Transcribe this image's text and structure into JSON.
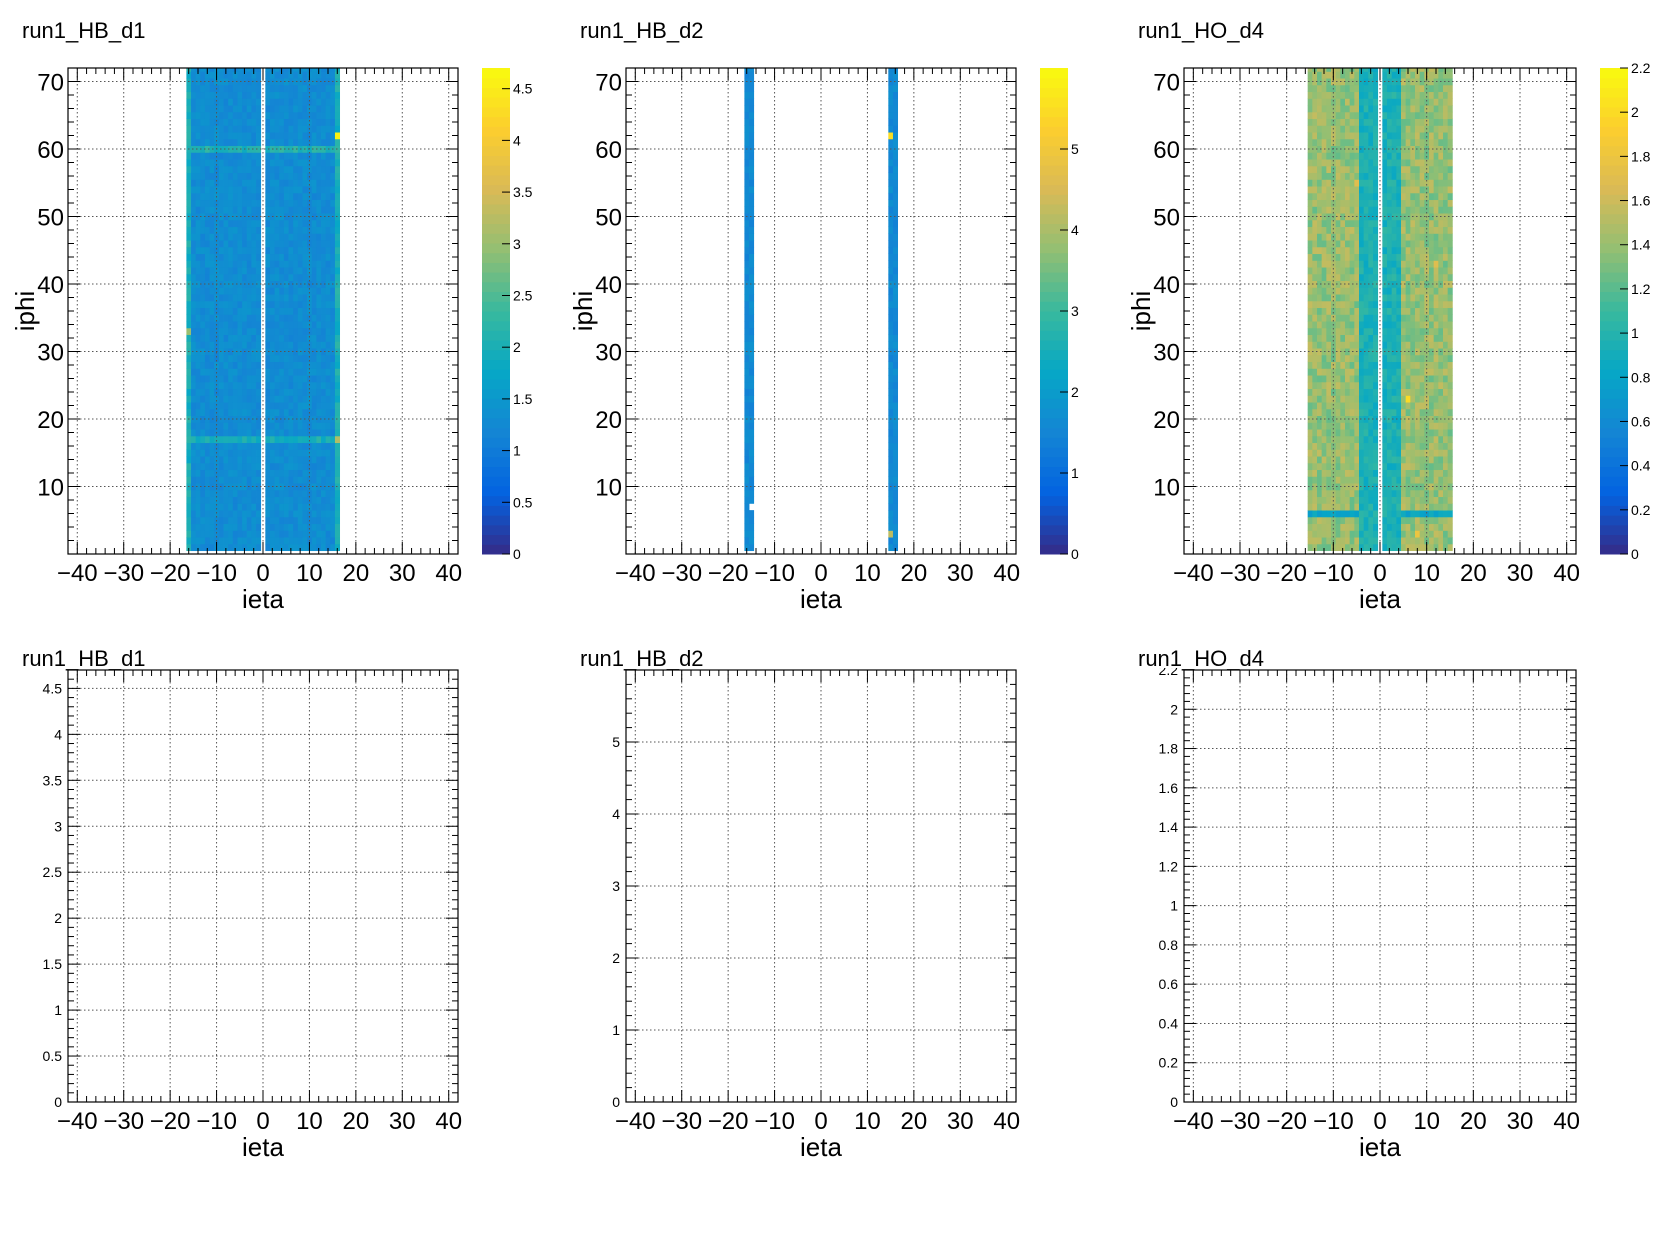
{
  "colors": {
    "grid": "#555555",
    "frame": "#000000",
    "palette": [
      "#352a87",
      "#0363e1",
      "#1485d4",
      "#06a7c6",
      "#38b99e",
      "#92bf73",
      "#d9ba56",
      "#fcce2e",
      "#f9fb0e"
    ]
  },
  "chart_data": [
    {
      "type": "heatmap",
      "title": "run1_HB_d1",
      "xlabel": "ieta",
      "ylabel": "iphi",
      "xlim": [
        -42,
        42
      ],
      "ylim": [
        0,
        72
      ],
      "xticks": [
        -40,
        -30,
        -20,
        -10,
        0,
        10,
        20,
        30,
        40
      ],
      "yticks": [
        10,
        20,
        30,
        40,
        50,
        60,
        70
      ],
      "z_range": [
        0,
        4.7
      ],
      "colorbar_ticks": [
        0,
        0.5,
        1,
        1.5,
        2,
        2.5,
        3,
        3.5,
        4,
        4.5
      ],
      "filled_ieta_ranges": [
        [
          -16,
          -1
        ],
        [
          1,
          16
        ]
      ],
      "iphi_range": [
        1,
        72
      ],
      "typical_value": 1.3,
      "edge_columns": {
        "ieta": [
          -16,
          16
        ],
        "value": 2.0
      },
      "hotspots": [
        {
          "ieta": 16,
          "iphi": 62,
          "value": 4.6
        },
        {
          "ieta": 16,
          "iphi": 17,
          "value": 3.2
        },
        {
          "ieta": -16,
          "iphi": 33,
          "value": 3.0
        }
      ],
      "band_rows": [
        {
          "iphi": 17,
          "value": 2.0
        },
        {
          "iphi": 60,
          "value": 2.1
        }
      ]
    },
    {
      "type": "heatmap",
      "title": "run1_HB_d2",
      "xlabel": "ieta",
      "ylabel": "iphi",
      "xlim": [
        -42,
        42
      ],
      "ylim": [
        0,
        72
      ],
      "xticks": [
        -40,
        -30,
        -20,
        -10,
        0,
        10,
        20,
        30,
        40
      ],
      "yticks": [
        10,
        20,
        30,
        40,
        50,
        60,
        70
      ],
      "z_range": [
        0,
        6
      ],
      "colorbar_ticks": [
        0,
        1,
        2,
        3,
        4,
        5
      ],
      "filled_ieta_ranges": [
        [
          -16,
          -15
        ],
        [
          15,
          16
        ]
      ],
      "iphi_range": [
        1,
        72
      ],
      "typical_value": 1.6,
      "missing_cells": [
        {
          "ieta": -15,
          "iphi": 7
        }
      ],
      "hotspots": [
        {
          "ieta": 15,
          "iphi": 62,
          "value": 5.5
        },
        {
          "ieta": 15,
          "iphi": 3,
          "value": 4.2
        }
      ]
    },
    {
      "type": "heatmap",
      "title": "run1_HO_d4",
      "xlabel": "ieta",
      "ylabel": "iphi",
      "xlim": [
        -42,
        42
      ],
      "ylim": [
        0,
        72
      ],
      "xticks": [
        -40,
        -30,
        -20,
        -10,
        0,
        10,
        20,
        30,
        40
      ],
      "yticks": [
        10,
        20,
        30,
        40,
        50,
        60,
        70
      ],
      "z_range": [
        0,
        2.2
      ],
      "colorbar_ticks": [
        0,
        0.2,
        0.4,
        0.6,
        0.8,
        1,
        1.2,
        1.4,
        1.6,
        1.8,
        2,
        2.2
      ],
      "filled_ieta_ranges": [
        [
          -15,
          -1
        ],
        [
          1,
          15
        ]
      ],
      "iphi_range": [
        1,
        72
      ],
      "typical_value": 1.4,
      "central_band": {
        "ieta": [
          -4,
          4
        ],
        "value": 0.95
      },
      "hotspots": [
        {
          "ieta": 6,
          "iphi": 23,
          "value": 2.0
        },
        {
          "ieta": -5,
          "iphi": 55,
          "value": 1.7
        },
        {
          "ieta": 12,
          "iphi": 43,
          "value": 1.7
        },
        {
          "ieta": 8,
          "iphi": 3,
          "value": 1.8
        }
      ],
      "band_rows": [
        {
          "iphi": 6,
          "value": 0.8
        }
      ]
    },
    {
      "type": "line",
      "title": "run1_HB_d1",
      "xlabel": "ieta",
      "xlim": [
        -42,
        42
      ],
      "ylim": [
        0,
        4.7
      ],
      "xticks": [
        -40,
        -30,
        -20,
        -10,
        0,
        10,
        20,
        30,
        40
      ],
      "yticks": [
        0,
        0.5,
        1,
        1.5,
        2,
        2.5,
        3,
        3.5,
        4,
        4.5
      ],
      "series": []
    },
    {
      "type": "line",
      "title": "run1_HB_d2",
      "xlabel": "ieta",
      "xlim": [
        -42,
        42
      ],
      "ylim": [
        0,
        6
      ],
      "xticks": [
        -40,
        -30,
        -20,
        -10,
        0,
        10,
        20,
        30,
        40
      ],
      "yticks": [
        0,
        1,
        2,
        3,
        4,
        5
      ],
      "series": []
    },
    {
      "type": "line",
      "title": "run1_HO_d4",
      "xlabel": "ieta",
      "xlim": [
        -42,
        42
      ],
      "ylim": [
        0,
        2.2
      ],
      "xticks": [
        -40,
        -30,
        -20,
        -10,
        0,
        10,
        20,
        30,
        40
      ],
      "yticks": [
        0,
        0.2,
        0.4,
        0.6,
        0.8,
        1,
        1.2,
        1.4,
        1.6,
        1.8,
        2,
        2.2
      ],
      "series": []
    }
  ]
}
